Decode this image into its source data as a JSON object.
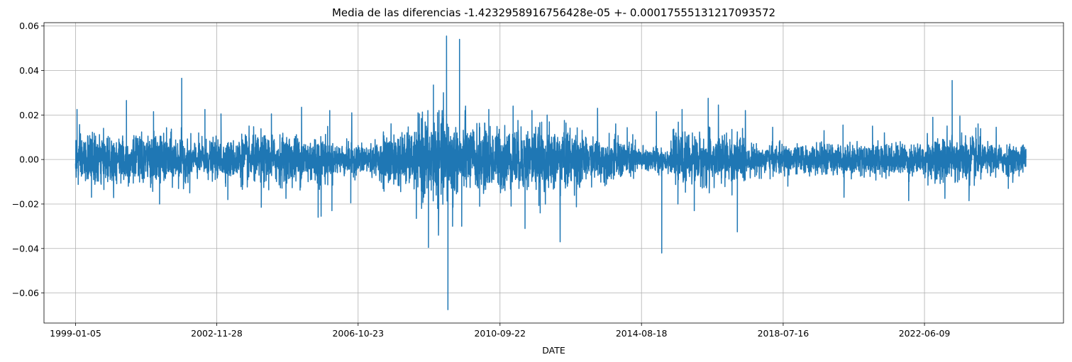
{
  "chart_data": {
    "type": "line",
    "title": "Media de las diferencias -1.4232958916756428e-05 +- 0.00017555131217093572",
    "xlabel": "DATE",
    "ylabel": "",
    "x_tick_labels": [
      "1999-01-05",
      "2002-11-28",
      "2006-10-23",
      "2010-09-22",
      "2014-08-18",
      "2018-07-16",
      "2022-06-09"
    ],
    "y_tick_labels": [
      "0.06",
      "0.04",
      "0.02",
      "0.00",
      "−0.02",
      "−0.04",
      "−0.06"
    ],
    "y_tick_values": [
      0.06,
      0.04,
      0.02,
      0.0,
      -0.02,
      -0.04,
      -0.06
    ],
    "xlim": [
      "1998-02-21",
      "2026-04-10"
    ],
    "ylim": [
      -0.0735,
      0.0615
    ],
    "x_start": "1999-01-05",
    "x_end": "2025-03-31",
    "grid": true,
    "legend": "none",
    "series": [
      {
        "color": "#1f77b4",
        "volatility_regimes": [
          {
            "from": "1999-01-05",
            "to": "2001-12-31",
            "amplitude": 0.0085
          },
          {
            "from": "2002-01-01",
            "to": "2003-06-30",
            "amplitude": 0.0065
          },
          {
            "from": "2003-07-01",
            "to": "2005-12-31",
            "amplitude": 0.0085
          },
          {
            "from": "2006-01-01",
            "to": "2007-06-30",
            "amplitude": 0.0055
          },
          {
            "from": "2007-07-01",
            "to": "2008-06-30",
            "amplitude": 0.0095
          },
          {
            "from": "2008-07-01",
            "to": "2009-06-30",
            "amplitude": 0.015
          },
          {
            "from": "2009-07-01",
            "to": "2012-12-31",
            "amplitude": 0.011
          },
          {
            "from": "2013-01-01",
            "to": "2014-06-30",
            "amplitude": 0.007
          },
          {
            "from": "2014-07-01",
            "to": "2015-06-30",
            "amplitude": 0.0045
          },
          {
            "from": "2015-07-01",
            "to": "2017-06-30",
            "amplitude": 0.0085
          },
          {
            "from": "2017-07-01",
            "to": "2019-12-31",
            "amplitude": 0.005
          },
          {
            "from": "2020-01-01",
            "to": "2022-06-30",
            "amplitude": 0.0055
          },
          {
            "from": "2022-07-01",
            "to": "2023-12-31",
            "amplitude": 0.008
          },
          {
            "from": "2024-01-01",
            "to": "2025-03-31",
            "amplitude": 0.005
          }
        ],
        "notable_points": [
          {
            "x": "1999-01-20",
            "y": 0.0225
          },
          {
            "x": "1999-02-01",
            "y": -0.0112
          },
          {
            "x": "1999-06-15",
            "y": -0.017
          },
          {
            "x": "2000-06-01",
            "y": 0.0265
          },
          {
            "x": "2000-06-20",
            "y": -0.012
          },
          {
            "x": "2001-03-01",
            "y": 0.0215
          },
          {
            "x": "2001-05-01",
            "y": -0.02
          },
          {
            "x": "2001-12-10",
            "y": 0.0365
          },
          {
            "x": "2002-03-01",
            "y": -0.015
          },
          {
            "x": "2002-08-01",
            "y": 0.0225
          },
          {
            "x": "2003-01-10",
            "y": 0.0205
          },
          {
            "x": "2003-03-20",
            "y": -0.018
          },
          {
            "x": "2004-02-20",
            "y": -0.0215
          },
          {
            "x": "2004-06-01",
            "y": 0.0205
          },
          {
            "x": "2005-04-01",
            "y": 0.0235
          },
          {
            "x": "2005-09-15",
            "y": -0.026
          },
          {
            "x": "2005-10-15",
            "y": -0.0255
          },
          {
            "x": "2006-01-10",
            "y": 0.022
          },
          {
            "x": "2006-02-01",
            "y": -0.023
          },
          {
            "x": "2006-08-10",
            "y": -0.0195
          },
          {
            "x": "2006-08-20",
            "y": 0.021
          },
          {
            "x": "2008-06-01",
            "y": -0.0265
          },
          {
            "x": "2008-07-01",
            "y": 0.0205
          },
          {
            "x": "2008-10-01",
            "y": -0.0395
          },
          {
            "x": "2008-11-20",
            "y": 0.0335
          },
          {
            "x": "2009-01-10",
            "y": -0.034
          },
          {
            "x": "2009-03-01",
            "y": 0.03
          },
          {
            "x": "2009-04-01",
            "y": 0.0555
          },
          {
            "x": "2009-04-15",
            "y": -0.0675
          },
          {
            "x": "2009-06-01",
            "y": -0.03
          },
          {
            "x": "2009-08-10",
            "y": 0.054
          },
          {
            "x": "2009-09-01",
            "y": -0.03
          },
          {
            "x": "2009-10-10",
            "y": 0.024
          },
          {
            "x": "2010-03-01",
            "y": -0.021
          },
          {
            "x": "2010-06-01",
            "y": 0.0225
          },
          {
            "x": "2011-02-01",
            "y": 0.024
          },
          {
            "x": "2011-06-01",
            "y": -0.031
          },
          {
            "x": "2011-08-10",
            "y": 0.022
          },
          {
            "x": "2011-11-01",
            "y": -0.024
          },
          {
            "x": "2012-01-10",
            "y": 0.02
          },
          {
            "x": "2012-05-20",
            "y": -0.037
          },
          {
            "x": "2013-06-01",
            "y": 0.023
          },
          {
            "x": "2013-12-01",
            "y": 0.016
          },
          {
            "x": "2015-01-15",
            "y": 0.0215
          },
          {
            "x": "2015-03-10",
            "y": -0.042
          },
          {
            "x": "2015-08-20",
            "y": -0.02
          },
          {
            "x": "2015-10-01",
            "y": 0.0225
          },
          {
            "x": "2016-02-01",
            "y": -0.023
          },
          {
            "x": "2016-06-20",
            "y": 0.0275
          },
          {
            "x": "2016-07-01",
            "y": -0.015
          },
          {
            "x": "2016-10-01",
            "y": 0.0245
          },
          {
            "x": "2017-04-10",
            "y": -0.0325
          },
          {
            "x": "2017-06-01",
            "y": 0.014
          },
          {
            "x": "2018-04-01",
            "y": 0.0145
          },
          {
            "x": "2018-09-01",
            "y": -0.012
          },
          {
            "x": "2019-09-01",
            "y": 0.013
          },
          {
            "x": "2020-03-10",
            "y": 0.0155
          },
          {
            "x": "2020-03-20",
            "y": -0.017
          },
          {
            "x": "2021-01-01",
            "y": 0.015
          },
          {
            "x": "2021-05-01",
            "y": 0.012
          },
          {
            "x": "2022-01-01",
            "y": -0.0185
          },
          {
            "x": "2022-09-01",
            "y": 0.019
          },
          {
            "x": "2023-01-01",
            "y": -0.0175
          },
          {
            "x": "2023-03-15",
            "y": 0.0355
          },
          {
            "x": "2023-06-01",
            "y": 0.0195
          },
          {
            "x": "2023-09-01",
            "y": -0.0185
          },
          {
            "x": "2023-12-01",
            "y": 0.016
          },
          {
            "x": "2024-06-01",
            "y": 0.0145
          },
          {
            "x": "2024-10-01",
            "y": -0.013
          }
        ]
      }
    ]
  }
}
